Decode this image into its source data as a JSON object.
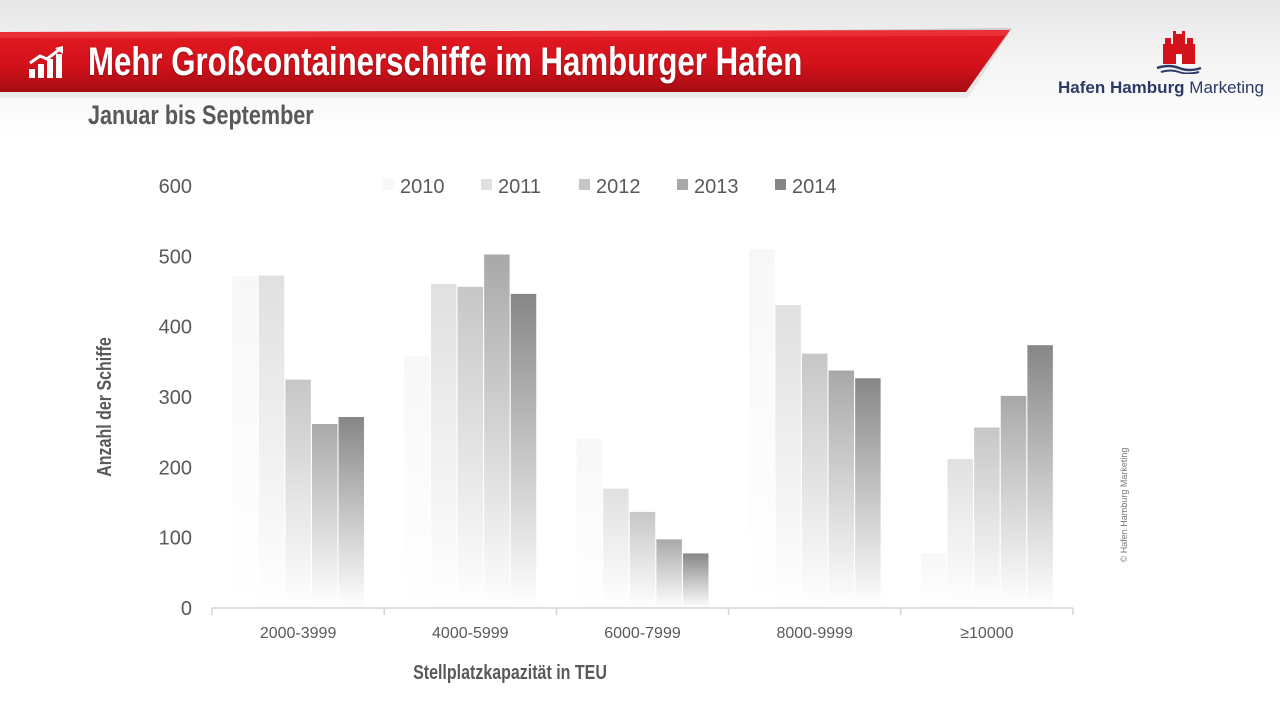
{
  "header": {
    "title": "Mehr Großcontainerschiffe im Hamburger Hafen",
    "subtitle": "Januar bis September",
    "icon": "chart-growth-icon"
  },
  "logo": {
    "name_bold": "Hafen Hamburg",
    "name_regular": " Marketing",
    "emblem": "hamburg-castle-emblem-icon",
    "color": "#2b3a67"
  },
  "copyright": "© Hafen Hamburg Marketing",
  "colors": {
    "banner_red": "#d3121b",
    "banner_dark": "#9e0a12",
    "series": [
      "#f7f7f7",
      "#e0e0e0",
      "#c6c6c6",
      "#a8a8a8",
      "#868686"
    ]
  },
  "chart_data": {
    "type": "bar",
    "categories": [
      "2000-3999",
      "4000-5999",
      "6000-7999",
      "8000-9999",
      "≥10000"
    ],
    "series": [
      {
        "name": "2010",
        "values": [
          472,
          358,
          241,
          510,
          78
        ]
      },
      {
        "name": "2011",
        "values": [
          473,
          461,
          170,
          431,
          212
        ]
      },
      {
        "name": "2012",
        "values": [
          325,
          457,
          137,
          362,
          257
        ]
      },
      {
        "name": "2013",
        "values": [
          262,
          503,
          98,
          338,
          302
        ]
      },
      {
        "name": "2014",
        "values": [
          272,
          447,
          78,
          327,
          374
        ]
      }
    ],
    "xlabel": "Stellplatzkapazität in TEU",
    "ylabel": "Anzahl der Schiffe",
    "ylim": [
      0,
      600
    ],
    "yticks": [
      "0",
      "100",
      "200",
      "300",
      "400",
      "500",
      "600"
    ],
    "grid": false,
    "legend": "top"
  }
}
